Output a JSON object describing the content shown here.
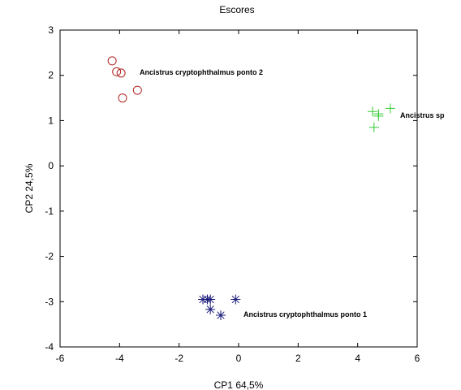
{
  "chart_data": {
    "type": "scatter",
    "title": "Escores",
    "xlabel": "CP1 64,5%",
    "ylabel": "CP2 24,5%",
    "xlim": [
      -6,
      6
    ],
    "ylim": [
      -4,
      3
    ],
    "xticks": [
      "-6",
      "-4",
      "-2",
      "0",
      "2",
      "4",
      "6"
    ],
    "yticks": [
      "3",
      "2",
      "1",
      "0",
      "-1",
      "-2",
      "-3",
      "-4"
    ],
    "grid": false,
    "legend": "none",
    "series": [
      {
        "label": "Ancistrus cryptophthalmus ponto 2",
        "marker": "circle",
        "color": "#b22222",
        "x": [
          -4.25,
          -4.1,
          -3.95,
          -3.9,
          -3.4
        ],
        "y": [
          2.32,
          2.08,
          2.05,
          1.5,
          1.67
        ]
      },
      {
        "label": "Ancistrus sp",
        "marker": "plus",
        "color": "#33cc33",
        "x": [
          4.5,
          4.7,
          5.1,
          4.7,
          4.55
        ],
        "y": [
          1.2,
          1.15,
          1.27,
          1.1,
          0.85
        ]
      },
      {
        "label": "Ancistrus cryptophthalmus ponto 1",
        "marker": "asterisk",
        "color": "#1a1a7a",
        "x": [
          -1.2,
          -1.05,
          -0.95,
          -0.95,
          -0.6,
          -0.1
        ],
        "y": [
          -2.95,
          -2.95,
          -2.95,
          -3.17,
          -3.3,
          -2.95
        ]
      }
    ]
  }
}
